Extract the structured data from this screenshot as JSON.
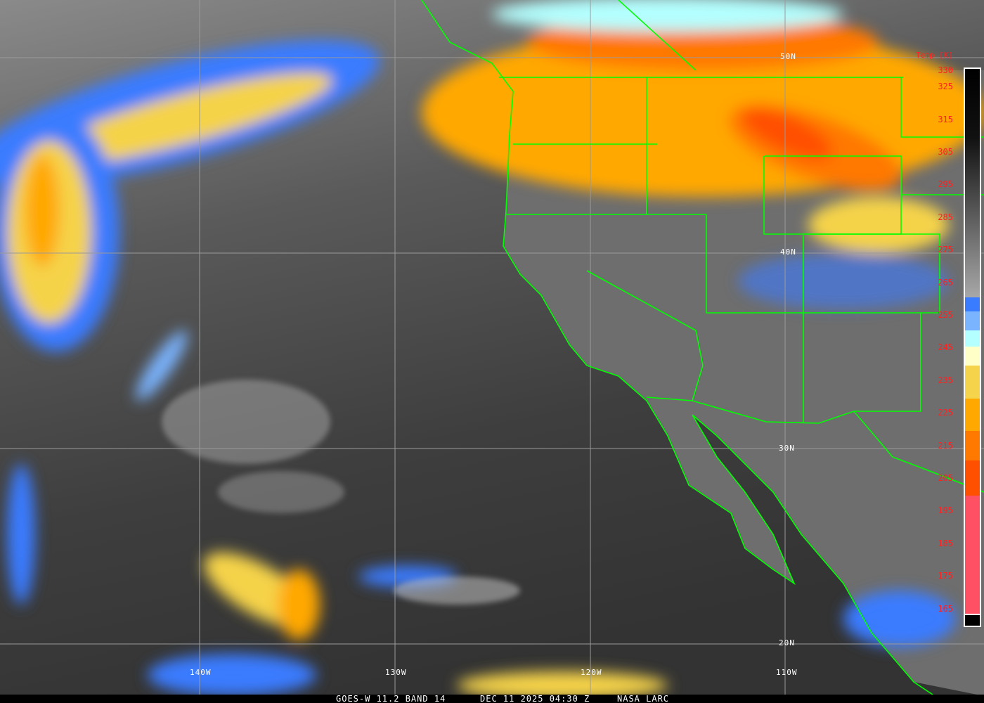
{
  "caption": {
    "product": "GOES-W 11.2 BAND 14",
    "datetime": "DEC 11 2025 04:30 Z",
    "source": "NASA LARC"
  },
  "colorbar": {
    "title": "Temp [K]",
    "ticks": [
      "330",
      "325",
      "315",
      "305",
      "295",
      "285",
      "275",
      "265",
      "255",
      "245",
      "235",
      "225",
      "215",
      "205",
      "195",
      "185",
      "175",
      "165"
    ],
    "colors": {
      "blue": "#3a7cff",
      "light_blue": "#7ab4ff",
      "cyan": "#b4ffff",
      "pale_yellow": "#ffffc8",
      "yellow": "#f5d34a",
      "orange": "#ffa800",
      "dark_orange": "#ff7800",
      "red_orange": "#ff5000",
      "pink": "#ff5064"
    }
  },
  "grid": {
    "lat_labels": [
      "50N",
      "40N",
      "30N",
      "20N"
    ],
    "lon_labels": [
      "140W",
      "130W",
      "120W",
      "110W"
    ],
    "boundary_color": "#00ff00"
  }
}
